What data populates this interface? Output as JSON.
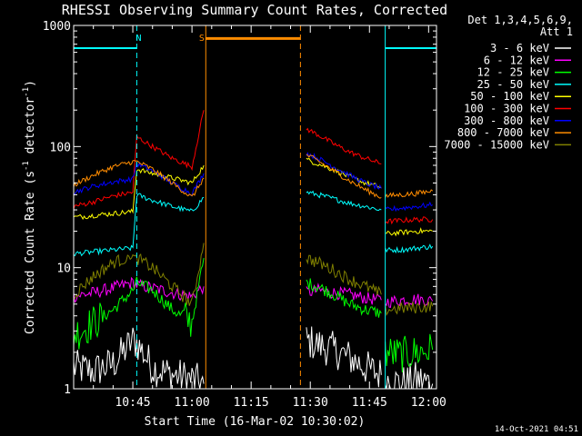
{
  "chart_data": {
    "type": "line",
    "title": "RHESSI Observing Summary Count Rates, Corrected",
    "xlabel": "Start Time (16-Mar-02 10:30:02)",
    "ylabel": "Corrected Count Rate (s⁻¹ detector⁻¹)",
    "ylabel_parts": {
      "main": "Corrected Count Rate (s",
      "sup1": "-1",
      "mid": " detector",
      "sup2": "-1",
      "end": ")"
    },
    "x_range_minutes": [
      0,
      92
    ],
    "x_ticks": [
      {
        "value": 15,
        "label": "10:45"
      },
      {
        "value": 30,
        "label": "11:00"
      },
      {
        "value": 45,
        "label": "11:15"
      },
      {
        "value": 60,
        "label": "11:30"
      },
      {
        "value": 75,
        "label": "11:45"
      },
      {
        "value": 90,
        "label": "12:00"
      }
    ],
    "y_scale": "log",
    "y_range": [
      1,
      1000
    ],
    "y_tick_labels": [
      {
        "value": 1,
        "label": "1"
      },
      {
        "value": 10,
        "label": "10"
      },
      {
        "value": 100,
        "label": "100"
      },
      {
        "value": 1000,
        "label": "1000"
      }
    ],
    "legend_title": [
      "Det 1,3,4,5,6,9,",
      "Att 1"
    ],
    "legend_position": "right",
    "annotations": [
      {
        "label": "N",
        "x": 16.5,
        "color": "#00FFFF"
      },
      {
        "label": "S",
        "x": 32.5,
        "color": "#FF8C00"
      }
    ],
    "night_bars": [
      {
        "x_start": 0,
        "x_end": 16,
        "level": 650,
        "color": "#00FFFF"
      },
      {
        "x_start": 79,
        "x_end": 92,
        "level": 650,
        "color": "#00FFFF"
      }
    ],
    "saa_bar": {
      "x_start": 33.5,
      "x_end": 57.5,
      "level": 780,
      "color": "#FF8C00"
    },
    "vlines": [
      {
        "x": 16,
        "color": "#00FFFF",
        "style": "dashed"
      },
      {
        "x": 79,
        "color": "#00FFFF",
        "style": "solid"
      },
      {
        "x": 92,
        "color": "#00FFFF",
        "style": "dashed"
      },
      {
        "x": 33.5,
        "color": "#FF8C00",
        "style": "solid"
      },
      {
        "x": 57.5,
        "color": "#FF8C00",
        "style": "dashed"
      }
    ],
    "series": [
      {
        "name": "3 - 6 keV",
        "color": "#FFFFFF",
        "segments": [
          {
            "x": [
              0,
              5,
              10,
              15,
              16,
              20,
              25,
              30,
              33
            ],
            "y": [
              1.5,
              1.4,
              1.6,
              2.5,
              2.4,
              1.5,
              1.3,
              1.2,
              1.1
            ]
          },
          {
            "x": [
              59,
              62,
              66,
              70,
              74,
              78
            ],
            "y": [
              2.5,
              2.3,
              2.1,
              1.8,
              1.5,
              1.3
            ]
          },
          {
            "x": [
              79,
              83,
              87,
              91
            ],
            "y": [
              1.2,
              1.1,
              1.2,
              1.1
            ]
          }
        ]
      },
      {
        "name": "6 - 12 keV",
        "color": "#FF00FF",
        "segments": [
          {
            "x": [
              0,
              5,
              10,
              15,
              16,
              20,
              25,
              30,
              33
            ],
            "y": [
              5.8,
              6.2,
              6.8,
              7.5,
              7.2,
              6.8,
              6.2,
              5.8,
              7
            ]
          },
          {
            "x": [
              59,
              62,
              66,
              70,
              74,
              78
            ],
            "y": [
              6.2,
              6.5,
              6.2,
              6.0,
              5.6,
              5.4
            ]
          },
          {
            "x": [
              79,
              83,
              87,
              91
            ],
            "y": [
              5.2,
              5.4,
              5.5,
              5.3
            ]
          }
        ]
      },
      {
        "name": "12 - 25 keV",
        "color": "#00FF00",
        "segments": [
          {
            "x": [
              0,
              5,
              10,
              15,
              16,
              20,
              25,
              30,
              33
            ],
            "y": [
              2.8,
              3.5,
              4.5,
              6.5,
              7.5,
              6.5,
              4.5,
              3.5,
              12
            ]
          },
          {
            "x": [
              59,
              62,
              66,
              70,
              74,
              78
            ],
            "y": [
              7.5,
              7.0,
              6.0,
              5.0,
              4.5,
              4.2
            ]
          },
          {
            "x": [
              79,
              83,
              87,
              91
            ],
            "y": [
              2.0,
              1.9,
              2.0,
              2.1
            ]
          }
        ]
      },
      {
        "name": "25 - 50 keV",
        "color": "#00FFFF",
        "segments": [
          {
            "x": [
              0,
              5,
              10,
              15,
              16,
              20,
              25,
              30,
              33
            ],
            "y": [
              13,
              13.5,
              14,
              14.5,
              40,
              36,
              32,
              29,
              38
            ]
          },
          {
            "x": [
              59,
              62,
              66,
              70,
              74,
              78
            ],
            "y": [
              42,
              40,
              37,
              34,
              32,
              30
            ]
          },
          {
            "x": [
              79,
              83,
              87,
              91
            ],
            "y": [
              14,
              14,
              14.5,
              15
            ]
          }
        ]
      },
      {
        "name": "50 - 100 keV",
        "color": "#FFFF00",
        "segments": [
          {
            "x": [
              0,
              5,
              10,
              15,
              16,
              20,
              25,
              30,
              33
            ],
            "y": [
              26,
              27,
              28,
              29,
              65,
              60,
              55,
              50,
              70
            ]
          },
          {
            "x": [
              59,
              62,
              66,
              70,
              74,
              78
            ],
            "y": [
              78,
              72,
              64,
              56,
              50,
              46
            ]
          },
          {
            "x": [
              79,
              83,
              87,
              91
            ],
            "y": [
              19,
              19.5,
              20,
              20
            ]
          }
        ]
      },
      {
        "name": "100 - 300 keV",
        "color": "#FF0000",
        "segments": [
          {
            "x": [
              0,
              5,
              10,
              15,
              16,
              20,
              25,
              30,
              33
            ],
            "y": [
              32,
              35,
              39,
              42,
              120,
              100,
              80,
              68,
              200
            ]
          },
          {
            "x": [
              59,
              62,
              66,
              70,
              74,
              78
            ],
            "y": [
              140,
              125,
              105,
              90,
              80,
              72
            ]
          },
          {
            "x": [
              79,
              83,
              87,
              91
            ],
            "y": [
              24,
              24.5,
              25,
              25
            ]
          }
        ]
      },
      {
        "name": "300 - 800 keV",
        "color": "#0000FF",
        "segments": [
          {
            "x": [
              0,
              5,
              10,
              15,
              16,
              20,
              25,
              30,
              33
            ],
            "y": [
              42,
              47,
              51,
              54,
              72,
              63,
              50,
              41,
              60
            ]
          },
          {
            "x": [
              59,
              62,
              66,
              70,
              74,
              78
            ],
            "y": [
              88,
              80,
              68,
              58,
              50,
              45
            ]
          },
          {
            "x": [
              79,
              83,
              87,
              91
            ],
            "y": [
              30,
              31,
              32,
              33
            ]
          }
        ]
      },
      {
        "name": "800 - 7000 keV",
        "color": "#FF8C00",
        "segments": [
          {
            "x": [
              0,
              5,
              10,
              15,
              16,
              20,
              25,
              30,
              33
            ],
            "y": [
              48,
              58,
              68,
              75,
              75,
              65,
              50,
              38,
              55
            ]
          },
          {
            "x": [
              59,
              62,
              66,
              70,
              74,
              78
            ],
            "y": [
              85,
              76,
              63,
              52,
              44,
              38
            ]
          },
          {
            "x": [
              79,
              83,
              87,
              91
            ],
            "y": [
              39,
              40,
              41,
              43
            ]
          }
        ]
      },
      {
        "name": "7000 - 15000 keV",
        "color": "#808000",
        "segments": [
          {
            "x": [
              0,
              5,
              10,
              15,
              16,
              20,
              25,
              30,
              33
            ],
            "y": [
              6,
              8.5,
              11,
              12.5,
              12,
              10,
              7,
              5,
              16
            ]
          },
          {
            "x": [
              59,
              62,
              66,
              70,
              74,
              78
            ],
            "y": [
              12,
              11,
              9.5,
              8,
              7,
              6
            ]
          },
          {
            "x": [
              79,
              83,
              87,
              91
            ],
            "y": [
              4.5,
              4.6,
              4.7,
              4.8
            ]
          }
        ]
      }
    ]
  },
  "footer": {
    "timestamp": "14-Oct-2021 04:51"
  }
}
